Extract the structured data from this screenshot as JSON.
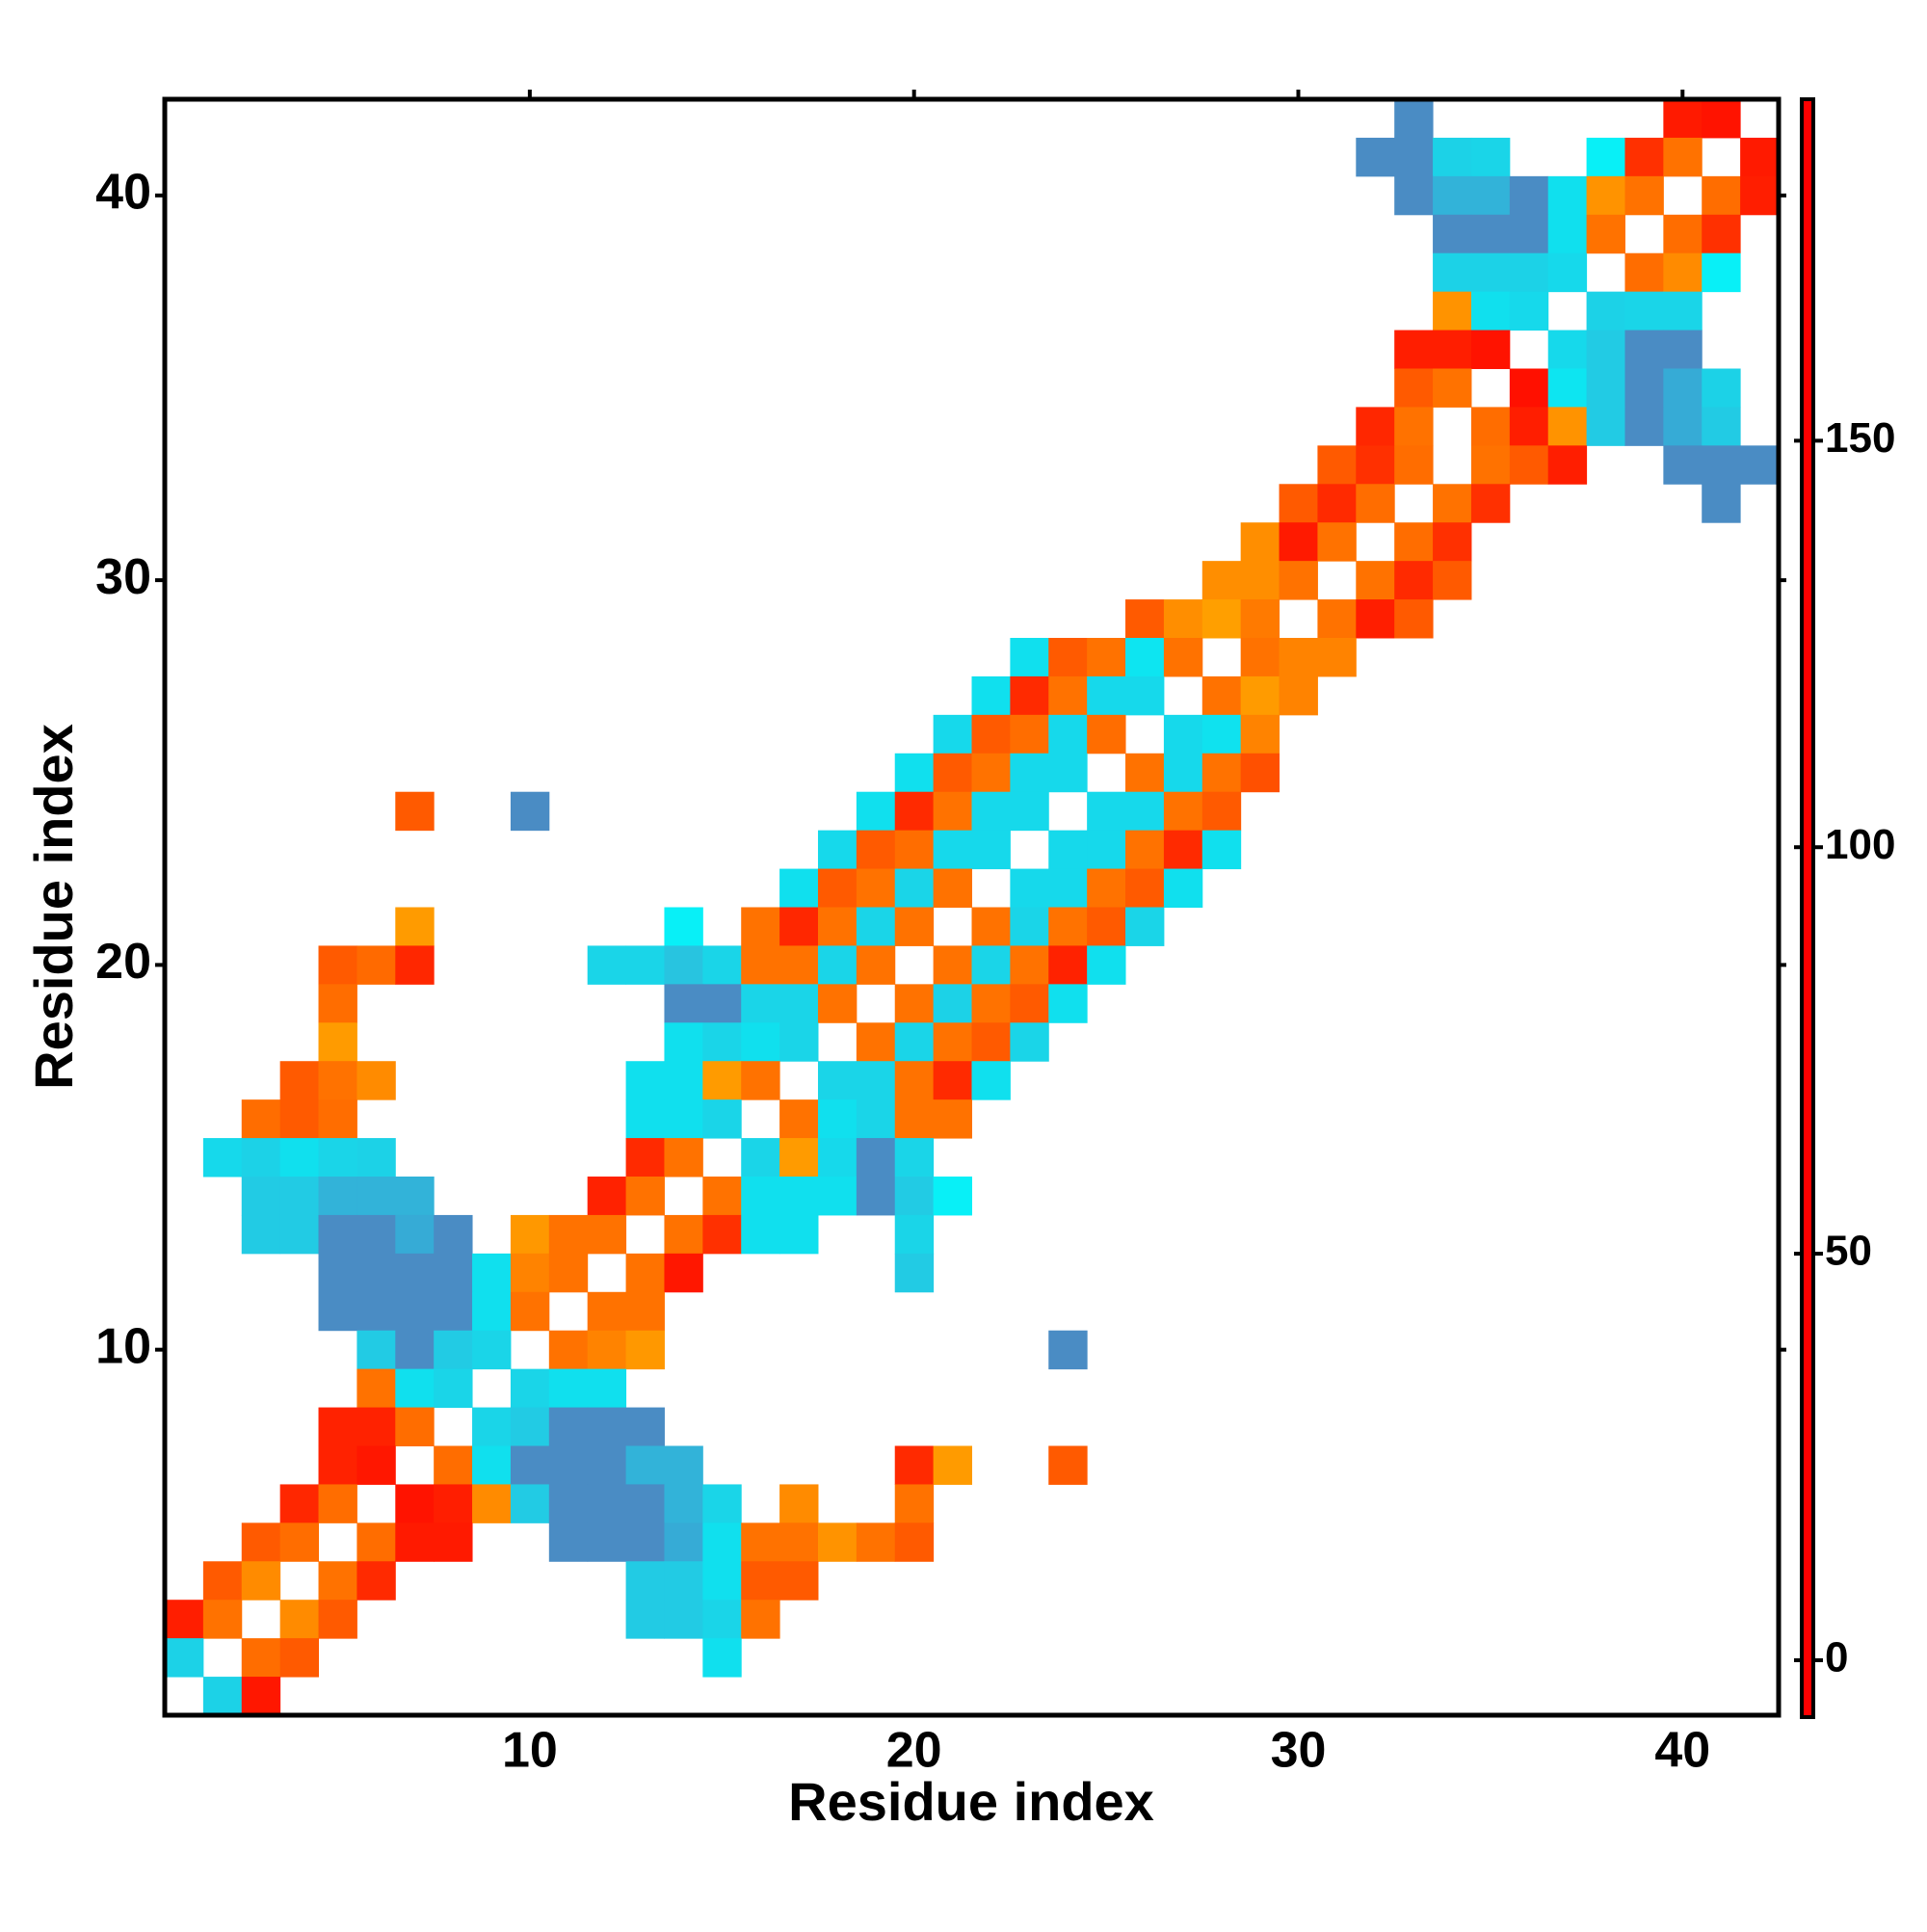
{
  "chart_data": {
    "type": "heatmap",
    "x_label": "Residue index",
    "y_label": "Residue index",
    "xlim": [
      0.5,
      42.5
    ],
    "ylim": [
      0.5,
      42.5
    ],
    "xticks": [
      10,
      20,
      30,
      40
    ],
    "yticks": [
      10,
      20,
      30,
      40
    ],
    "clim": [
      -7,
      192
    ],
    "cticks": [
      0,
      50,
      100,
      150
    ],
    "colorscale": [
      [
        -7,
        "#ff0000"
      ],
      [
        20,
        "#ff2a00"
      ],
      [
        40,
        "#ff6a00"
      ],
      [
        79,
        "#ffaa00"
      ],
      [
        80,
        "#00ffff"
      ],
      [
        110,
        "#10e0ee"
      ],
      [
        130,
        "#28c4e0"
      ],
      [
        150,
        "#3ba2d2"
      ],
      [
        160,
        "#4a8cc4"
      ],
      [
        180,
        "#4a8cc4"
      ],
      [
        181,
        "#ffffff"
      ],
      [
        192,
        "#ffffff"
      ]
    ],
    "x": [
      33,
      40,
      41,
      32,
      33,
      34,
      35,
      38,
      39,
      40,
      42,
      33,
      34,
      35,
      36,
      37,
      38,
      39,
      41,
      42,
      34,
      35,
      36,
      37,
      38,
      40,
      41,
      34,
      35,
      36,
      37,
      39,
      40,
      41,
      34,
      35,
      36,
      38,
      39,
      40,
      33,
      34,
      35,
      37,
      38,
      39,
      40,
      33,
      34,
      36,
      37,
      38,
      39,
      40,
      41,
      32,
      33,
      35,
      36,
      37,
      38,
      39,
      40,
      41,
      31,
      32,
      33,
      35,
      36,
      37,
      40,
      41,
      42,
      30,
      31,
      32,
      34,
      35,
      41,
      29,
      30,
      31,
      33,
      34,
      28,
      29,
      30,
      32,
      33,
      34,
      26,
      27,
      28,
      29,
      31,
      32,
      33,
      23,
      24,
      25,
      26,
      27,
      29,
      30,
      31,
      22,
      23,
      24,
      25,
      26,
      28,
      29,
      30,
      21,
      22,
      23,
      24,
      25,
      27,
      28,
      29,
      20,
      21,
      22,
      23,
      24,
      26,
      27,
      28,
      29,
      7,
      10,
      19,
      20,
      21,
      22,
      23,
      25,
      26,
      27,
      28,
      18,
      19,
      20,
      21,
      22,
      24,
      25,
      26,
      27,
      28,
      17,
      18,
      19,
      20,
      21,
      23,
      24,
      25,
      26,
      27,
      7,
      14,
      16,
      17,
      18,
      19,
      20,
      22,
      23,
      24,
      25,
      26,
      5,
      6,
      7,
      12,
      13,
      14,
      15,
      16,
      17,
      18,
      19,
      21,
      22,
      23,
      24,
      25,
      5,
      14,
      15,
      16,
      17,
      18,
      20,
      21,
      22,
      23,
      24,
      5,
      14,
      15,
      16,
      17,
      19,
      20,
      21,
      22,
      23,
      4,
      5,
      6,
      13,
      14,
      15,
      16,
      18,
      19,
      20,
      21,
      22,
      3,
      4,
      5,
      13,
      14,
      15,
      17,
      18,
      19,
      20,
      21,
      2,
      3,
      4,
      5,
      6,
      13,
      14,
      16,
      17,
      18,
      19,
      20,
      3,
      4,
      5,
      6,
      7,
      12,
      13,
      15,
      16,
      17,
      18,
      19,
      20,
      21,
      3,
      4,
      5,
      6,
      7,
      8,
      10,
      11,
      12,
      14,
      15,
      16,
      17,
      20,
      5,
      6,
      7,
      8,
      9,
      10,
      11,
      13,
      14,
      20,
      5,
      6,
      7,
      8,
      9,
      10,
      12,
      13,
      6,
      7,
      8,
      9,
      11,
      12,
      13,
      24,
      6,
      7,
      8,
      10,
      11,
      12,
      5,
      6,
      7,
      9,
      10,
      11,
      12,
      13,
      5,
      6,
      8,
      9,
      10,
      11,
      12,
      13,
      14,
      20,
      21,
      24,
      4,
      5,
      7,
      8,
      9,
      10,
      11,
      12,
      13,
      14,
      15,
      17,
      20,
      3,
      4,
      6,
      7,
      8,
      11,
      12,
      13,
      14,
      15,
      16,
      17,
      18,
      19,
      20,
      2,
      3,
      5,
      6,
      13,
      14,
      15,
      16,
      17,
      1,
      2,
      4,
      5,
      13,
      14,
      15,
      16,
      1,
      3,
      4,
      15,
      2,
      3
    ],
    "y": [
      42,
      42,
      42,
      41,
      41,
      41,
      41,
      41,
      41,
      41,
      41,
      40,
      40,
      40,
      40,
      40,
      40,
      40,
      40,
      40,
      39,
      39,
      39,
      39,
      39,
      39,
      39,
      38,
      38,
      38,
      38,
      38,
      38,
      38,
      37,
      37,
      37,
      37,
      37,
      37,
      36,
      36,
      36,
      36,
      36,
      36,
      36,
      35,
      35,
      35,
      35,
      35,
      35,
      35,
      35,
      34,
      34,
      34,
      34,
      34,
      34,
      34,
      34,
      34,
      33,
      33,
      33,
      33,
      33,
      33,
      33,
      33,
      33,
      32,
      32,
      32,
      32,
      32,
      32,
      31,
      31,
      31,
      31,
      31,
      30,
      30,
      30,
      30,
      30,
      30,
      29,
      29,
      29,
      29,
      29,
      29,
      29,
      28,
      28,
      28,
      28,
      28,
      28,
      28,
      28,
      27,
      27,
      27,
      27,
      27,
      27,
      27,
      27,
      26,
      26,
      26,
      26,
      26,
      26,
      26,
      26,
      25,
      25,
      25,
      25,
      25,
      25,
      25,
      25,
      25,
      24,
      24,
      24,
      24,
      24,
      24,
      24,
      24,
      24,
      24,
      24,
      23,
      23,
      23,
      23,
      23,
      23,
      23,
      23,
      23,
      23,
      22,
      22,
      22,
      22,
      22,
      22,
      22,
      22,
      22,
      22,
      21,
      21,
      21,
      21,
      21,
      21,
      21,
      21,
      21,
      21,
      21,
      21,
      20,
      20,
      20,
      20,
      20,
      20,
      20,
      20,
      20,
      20,
      20,
      20,
      20,
      20,
      20,
      20,
      19,
      19,
      19,
      19,
      19,
      19,
      19,
      19,
      19,
      19,
      19,
      18,
      18,
      18,
      18,
      18,
      18,
      18,
      18,
      18,
      18,
      17,
      17,
      17,
      17,
      17,
      17,
      17,
      17,
      17,
      17,
      17,
      17,
      16,
      16,
      16,
      16,
      16,
      16,
      16,
      16,
      16,
      16,
      16,
      15,
      15,
      15,
      15,
      15,
      15,
      15,
      15,
      15,
      15,
      15,
      15,
      14,
      14,
      14,
      14,
      14,
      14,
      14,
      14,
      14,
      14,
      14,
      14,
      14,
      14,
      13,
      13,
      13,
      13,
      13,
      13,
      13,
      13,
      13,
      13,
      13,
      13,
      13,
      13,
      12,
      12,
      12,
      12,
      12,
      12,
      12,
      12,
      12,
      12,
      11,
      11,
      11,
      11,
      11,
      11,
      11,
      11,
      10,
      10,
      10,
      10,
      10,
      10,
      10,
      10,
      9,
      9,
      9,
      9,
      9,
      9,
      8,
      8,
      8,
      8,
      8,
      8,
      8,
      8,
      7,
      7,
      7,
      7,
      7,
      7,
      7,
      7,
      7,
      7,
      7,
      7,
      6,
      6,
      6,
      6,
      6,
      6,
      6,
      6,
      6,
      6,
      6,
      6,
      6,
      5,
      5,
      5,
      5,
      5,
      5,
      5,
      5,
      5,
      5,
      5,
      5,
      5,
      5,
      5,
      4,
      4,
      4,
      4,
      4,
      4,
      4,
      4,
      4,
      3,
      3,
      3,
      3,
      3,
      3,
      3,
      3,
      2,
      2,
      2,
      2,
      1,
      1
    ],
    "values": [
      165,
      10,
      5,
      165,
      165,
      120,
      118,
      95,
      22,
      45,
      10,
      165,
      140,
      140,
      165,
      110,
      65,
      45,
      42,
      12,
      165,
      165,
      165,
      110,
      45,
      42,
      22,
      120,
      120,
      120,
      115,
      42,
      60,
      95,
      65,
      110,
      115,
      120,
      118,
      118,
      12,
      12,
      5,
      115,
      125,
      160,
      160,
      35,
      45,
      3,
      105,
      125,
      165,
      145,
      120,
      18,
      45,
      42,
      12,
      65,
      125,
      165,
      145,
      125,
      35,
      22,
      42,
      45,
      35,
      12,
      165,
      165,
      165,
      35,
      20,
      42,
      45,
      22,
      165,
      62,
      10,
      45,
      42,
      22,
      62,
      62,
      45,
      45,
      20,
      35,
      35,
      62,
      72,
      50,
      45,
      12,
      35,
      110,
      35,
      45,
      105,
      45,
      45,
      55,
      55,
      110,
      20,
      45,
      115,
      115,
      45,
      70,
      55,
      115,
      35,
      42,
      115,
      42,
      115,
      108,
      55,
      110,
      35,
      45,
      115,
      115,
      45,
      115,
      45,
      32,
      35,
      165,
      110,
      20,
      45,
      115,
      115,
      115,
      115,
      45,
      35,
      115,
      35,
      42,
      115,
      115,
      115,
      115,
      45,
      20,
      110,
      110,
      35,
      45,
      118,
      45,
      115,
      115,
      45,
      35,
      110,
      70,
      95,
      45,
      18,
      45,
      118,
      45,
      45,
      118,
      45,
      35,
      118,
      35,
      40,
      18,
      118,
      118,
      130,
      118,
      45,
      45,
      118,
      45,
      45,
      118,
      45,
      15,
      110,
      42,
      165,
      165,
      118,
      118,
      45,
      45,
      120,
      45,
      35,
      110,
      70,
      110,
      118,
      110,
      118,
      45,
      118,
      45,
      35,
      118,
      35,
      45,
      60,
      110,
      110,
      70,
      45,
      118,
      118,
      45,
      20,
      110,
      42,
      35,
      42,
      110,
      110,
      118,
      45,
      110,
      118,
      45,
      45,
      115,
      120,
      110,
      118,
      120,
      20,
      45,
      118,
      70,
      115,
      165,
      118,
      125,
      125,
      140,
      140,
      140,
      15,
      45,
      45,
      110,
      110,
      110,
      165,
      125,
      95,
      125,
      125,
      165,
      165,
      145,
      165,
      68,
      45,
      45,
      45,
      22,
      110,
      110,
      118,
      165,
      165,
      165,
      165,
      110,
      55,
      45,
      45,
      8,
      125,
      165,
      165,
      165,
      165,
      110,
      45,
      45,
      45,
      125,
      165,
      125,
      118,
      45,
      55,
      68,
      165,
      45,
      110,
      118,
      118,
      110,
      110,
      15,
      15,
      42,
      118,
      125,
      165,
      165,
      165,
      15,
      8,
      42,
      110,
      165,
      165,
      165,
      140,
      140,
      20,
      70,
      35,
      18,
      42,
      5,
      12,
      60,
      125,
      165,
      165,
      165,
      140,
      118,
      60,
      45,
      35,
      42,
      42,
      10,
      10,
      165,
      165,
      165,
      145,
      110,
      45,
      45,
      65,
      45,
      35,
      35,
      60,
      45,
      20,
      125,
      125,
      110,
      35,
      35,
      12,
      45,
      60,
      35,
      125,
      125,
      118,
      45,
      120,
      42,
      35,
      110,
      120,
      8
    ]
  }
}
